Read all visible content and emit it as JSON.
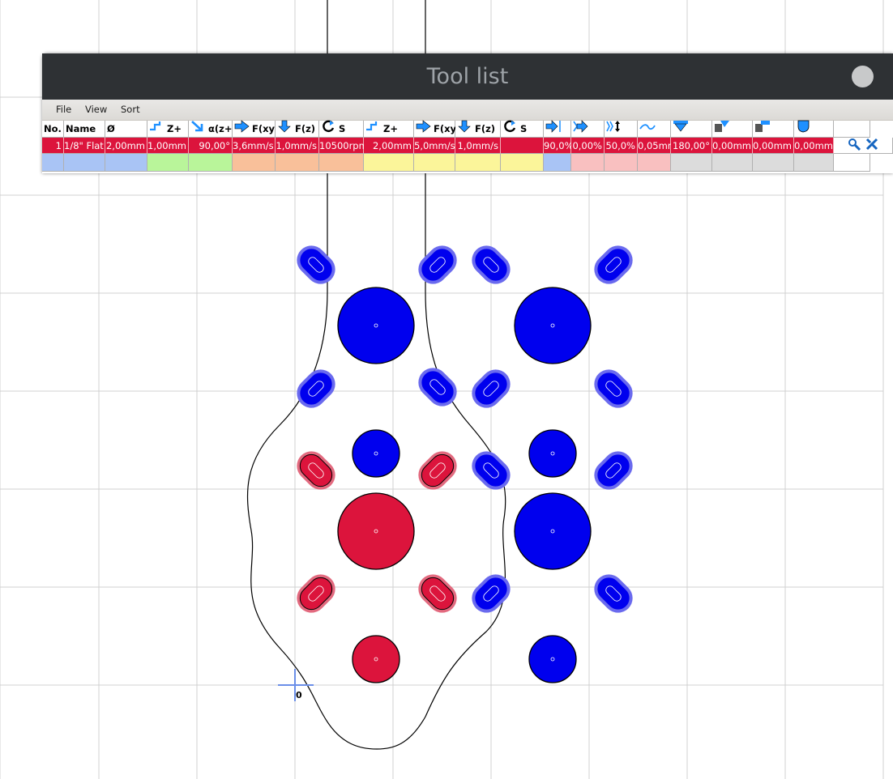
{
  "window": {
    "title": "Tool list"
  },
  "menu": [
    "File",
    "View",
    "Sort"
  ],
  "table": {
    "headers": [
      {
        "label": "No.",
        "icon": ""
      },
      {
        "label": "Name",
        "icon": ""
      },
      {
        "label": "Ø",
        "icon": ""
      },
      {
        "label": "Z+",
        "icon": "step-up-icon"
      },
      {
        "label": "α(z+)",
        "icon": "arrow-down-right-icon"
      },
      {
        "label": "F(xy)",
        "icon": "arrow-right-icon"
      },
      {
        "label": "F(z)",
        "icon": "arrow-down-icon"
      },
      {
        "label": "S",
        "icon": "rotate-icon"
      },
      {
        "label": "Z+",
        "icon": "step-up-icon"
      },
      {
        "label": "F(xy)",
        "icon": "arrow-right-icon"
      },
      {
        "label": "F(z)",
        "icon": "arrow-down-icon"
      },
      {
        "label": "S",
        "icon": "rotate-icon"
      },
      {
        "label": "",
        "icon": "stepover-icon"
      },
      {
        "label": "",
        "icon": "double-arrow-icon"
      },
      {
        "label": "",
        "icon": "step-down-icon"
      },
      {
        "label": "",
        "icon": "wave-icon"
      },
      {
        "label": "",
        "icon": "v-bit-icon"
      },
      {
        "label": "",
        "icon": "tool-offset-icon"
      },
      {
        "label": "",
        "icon": "tool-length-icon"
      },
      {
        "label": "",
        "icon": "tool-shape-icon"
      },
      {
        "label": "",
        "icon": ""
      }
    ],
    "row": [
      "1",
      "1/8\" Flat",
      "2,00mm",
      "1,00mm",
      "90,00°",
      "3,6mm/s",
      "1,0mm/s",
      "10500rpm",
      "2,00mm",
      "5,0mm/s",
      "1,0mm/s",
      "",
      "90,0%",
      "0,00%",
      "50,0%",
      "0,05mm",
      "180,00°",
      "0,00mm",
      "0,00mm",
      "0,00mm"
    ],
    "row_actions": [
      "search-icon",
      "delete-tool-icon"
    ],
    "group_colors": [
      "#a9c4f5",
      "#a9c4f5",
      "#a9c4f5",
      "#b9f59a",
      "#b9f59a",
      "#f9c09a",
      "#f9c09a",
      "#f9c09a",
      "#fbf59a",
      "#fbf59a",
      "#fbf59a",
      "#fbf59a",
      "#a9c4f5",
      "#f9c0c0",
      "#f9c0c0",
      "#f9c0c0",
      "#dcdcdc",
      "#dcdcdc",
      "#dcdcdc",
      "#dcdcdc",
      "#ffffff"
    ]
  },
  "canvas": {
    "origin_label": "0",
    "colors": {
      "blue": "#0000ee",
      "red": "#dc143c",
      "grid": "#d0d0d0"
    }
  }
}
